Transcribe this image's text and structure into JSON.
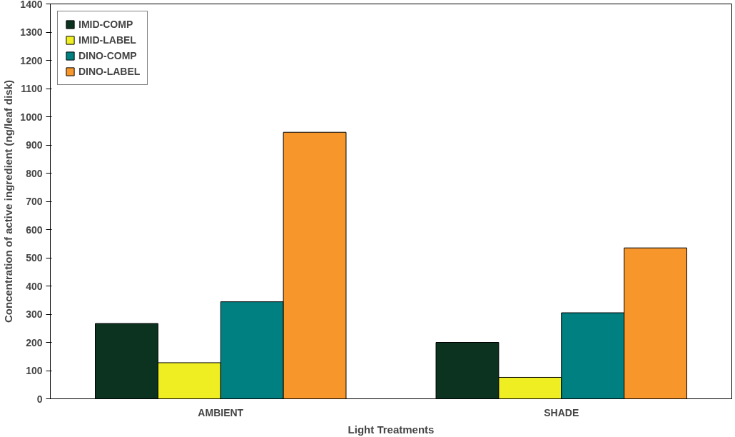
{
  "chart_data": {
    "type": "bar",
    "xlabel": "Light Treatments",
    "ylabel": "Concentration of active ingredient (ng/leaf disk)",
    "categories": [
      "AMBIENT",
      "SHADE"
    ],
    "series": [
      {
        "name": "IMID-COMP",
        "color": "#0b3320",
        "values": [
          267,
          200
        ]
      },
      {
        "name": "IMID-LABEL",
        "color": "#eeee22",
        "values": [
          128,
          76
        ]
      },
      {
        "name": "DINO-COMP",
        "color": "#008080",
        "values": [
          344,
          305
        ]
      },
      {
        "name": "DINO-LABEL",
        "color": "#f7962a",
        "values": [
          945,
          535
        ]
      }
    ],
    "ylim": [
      0,
      1400
    ],
    "yticks": [
      0,
      100,
      200,
      300,
      400,
      500,
      600,
      700,
      800,
      900,
      1000,
      1100,
      1200,
      1300,
      1400
    ],
    "grid": false,
    "legend": "top left"
  }
}
